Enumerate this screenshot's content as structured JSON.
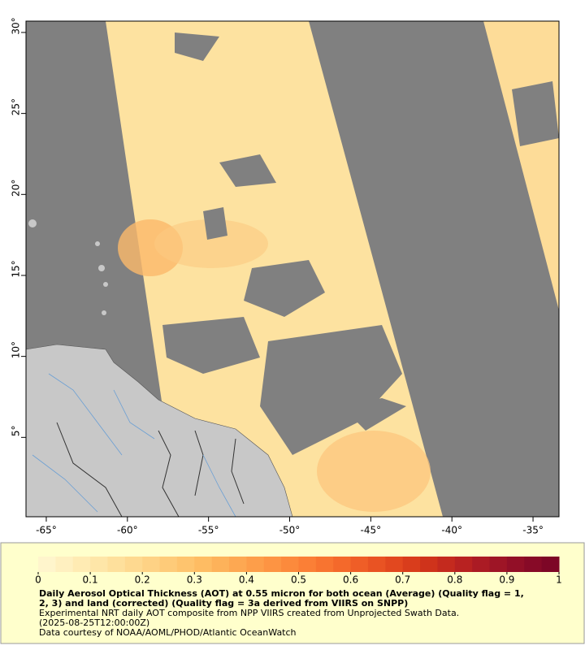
{
  "map": {
    "xlim": [
      -66.25,
      -33.4
    ],
    "ylim": [
      0.1,
      30.7
    ],
    "xticks": [
      {
        "value": -65,
        "label": "-65°"
      },
      {
        "value": -60,
        "label": "-60°"
      },
      {
        "value": -55,
        "label": "-55°"
      },
      {
        "value": -50,
        "label": "-50°"
      },
      {
        "value": -45,
        "label": "-45°"
      },
      {
        "value": -40,
        "label": "-40°"
      },
      {
        "value": -35,
        "label": "-35°"
      }
    ],
    "yticks": [
      {
        "value": 5,
        "label": "5°"
      },
      {
        "value": 10,
        "label": "10°"
      },
      {
        "value": 15,
        "label": "15°"
      },
      {
        "value": 20,
        "label": "20°"
      },
      {
        "value": 25,
        "label": "25°"
      },
      {
        "value": 30,
        "label": "30°"
      }
    ]
  },
  "colorbar": {
    "lim": [
      0,
      1
    ],
    "ticks": [
      0,
      0.1,
      0.2,
      0.3,
      0.4,
      0.5,
      0.6,
      0.7,
      0.8,
      0.9,
      1
    ],
    "colors": [
      "#fff5cc",
      "#fff0c0",
      "#ffebb3",
      "#fee6a8",
      "#fee09c",
      "#fed990",
      "#fed285",
      "#fecb79",
      "#fec46e",
      "#febc63",
      "#fdb25a",
      "#fda852",
      "#fd9e4a",
      "#fd9443",
      "#fc8a3c",
      "#fb7f36",
      "#f87430",
      "#f4692b",
      "#ef5e27",
      "#e95323",
      "#e2481f",
      "#d93d1c",
      "#cf331b",
      "#c42a1e",
      "#b82221",
      "#ab1b24",
      "#9e1526",
      "#920f27",
      "#870a27",
      "#7d0626"
    ]
  },
  "caption": {
    "title_lines": [
      "Daily Aerosol Optical Thickness (AOT) at 0.55 micron for both ocean (Average) (Quality flag = 1,",
      "2, 3) and land (corrected) (Quality flag = 3a derived from VIIRS on SNPP)"
    ],
    "lines": [
      "Experimental NRT daily AOT composite from NPP VIIRS created from Unprojected Swath Data.",
      "(2025-08-25T12:00:00Z)",
      "Data courtesy of NOAA/AOML/PHOD/Atlantic OceanWatch"
    ]
  }
}
